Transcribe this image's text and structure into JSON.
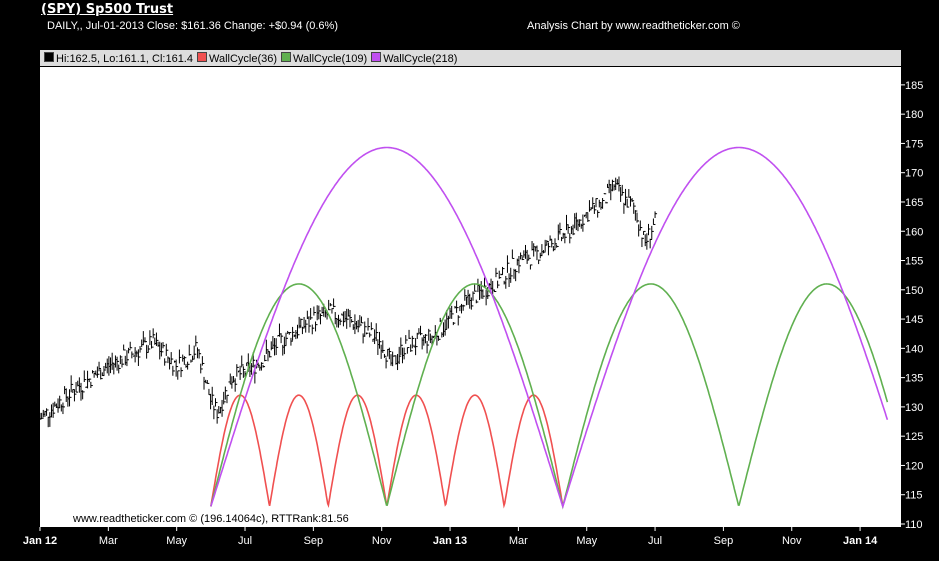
{
  "header": {
    "title": "(SPY) Sp500 Trust",
    "subtitle": "DAILY,, Jul-01-2013  Close: $161.36  Change: +$0.94  (0.6%)",
    "credit": "Analysis Chart by www.readtheticker.com ©"
  },
  "legend": [
    {
      "label": "Hi:162.5, Lo:161.1, Cl:161.4",
      "color": "#000000"
    },
    {
      "label": "WallCycle(36)",
      "color": "#f05050"
    },
    {
      "label": "WallCycle(109)",
      "color": "#60b050"
    },
    {
      "label": "WallCycle(218)",
      "color": "#c050f0"
    }
  ],
  "footer_text": "www.readtheticker.com © (196.14064c), RTTRank:81.56",
  "chart_data": {
    "type": "line",
    "x_unit": "months since Jan 2012",
    "xlim": [
      0,
      24.6
    ],
    "ylim": [
      110,
      188
    ],
    "yticks": [
      110,
      115,
      120,
      125,
      130,
      135,
      140,
      145,
      150,
      155,
      160,
      165,
      170,
      175,
      180,
      185
    ],
    "xticks": [
      {
        "v": 0,
        "label": "Jan 12",
        "bold": true
      },
      {
        "v": 2,
        "label": "Mar"
      },
      {
        "v": 4,
        "label": "May"
      },
      {
        "v": 6,
        "label": "Jul"
      },
      {
        "v": 8,
        "label": "Sep"
      },
      {
        "v": 10,
        "label": "Nov"
      },
      {
        "v": 12,
        "label": "Jan 13",
        "bold": true
      },
      {
        "v": 14,
        "label": "Mar"
      },
      {
        "v": 16,
        "label": "May"
      },
      {
        "v": 18,
        "label": "Jul"
      },
      {
        "v": 20,
        "label": "Sep"
      },
      {
        "v": 22,
        "label": "Nov"
      },
      {
        "v": 24,
        "label": "Jan 14",
        "bold": true
      }
    ],
    "price": [
      [
        0,
        128
      ],
      [
        1,
        133
      ],
      [
        2,
        137
      ],
      [
        3,
        140
      ],
      [
        3.3,
        141
      ],
      [
        4,
        137
      ],
      [
        4.6,
        140
      ],
      [
        5,
        131
      ],
      [
        5.2,
        129
      ],
      [
        5.6,
        135
      ],
      [
        6,
        136
      ],
      [
        6.5,
        138
      ],
      [
        7,
        141
      ],
      [
        7.5,
        143
      ],
      [
        8,
        145
      ],
      [
        8.5,
        146
      ],
      [
        9,
        145
      ],
      [
        9.5,
        143
      ],
      [
        10,
        141
      ],
      [
        10.3,
        137
      ],
      [
        10.6,
        140
      ],
      [
        11,
        141
      ],
      [
        11.5,
        142
      ],
      [
        12,
        145
      ],
      [
        12.5,
        148
      ],
      [
        13,
        150
      ],
      [
        13.5,
        152
      ],
      [
        14,
        155
      ],
      [
        14.5,
        156
      ],
      [
        15,
        158
      ],
      [
        15.5,
        160
      ],
      [
        16,
        163
      ],
      [
        16.5,
        165
      ],
      [
        16.8,
        168
      ],
      [
        17,
        166
      ],
      [
        17.4,
        164
      ],
      [
        17.7,
        158
      ],
      [
        18,
        161.5
      ]
    ],
    "cycles": [
      {
        "name": "WallCycle(36)",
        "color": "#f05050",
        "start": 5.0,
        "period": 1.717,
        "end": 15.3,
        "trough": 113,
        "peak": 132
      },
      {
        "name": "WallCycle(109)",
        "color": "#60b050",
        "start": 5.0,
        "period": 5.15,
        "end": 24.8,
        "trough": 113,
        "peak": 151
      },
      {
        "name": "WallCycle(218)",
        "color": "#c050f0",
        "start": 5.0,
        "period": 10.3,
        "end": 24.8,
        "trough": 113,
        "peak": 174.3
      }
    ]
  }
}
